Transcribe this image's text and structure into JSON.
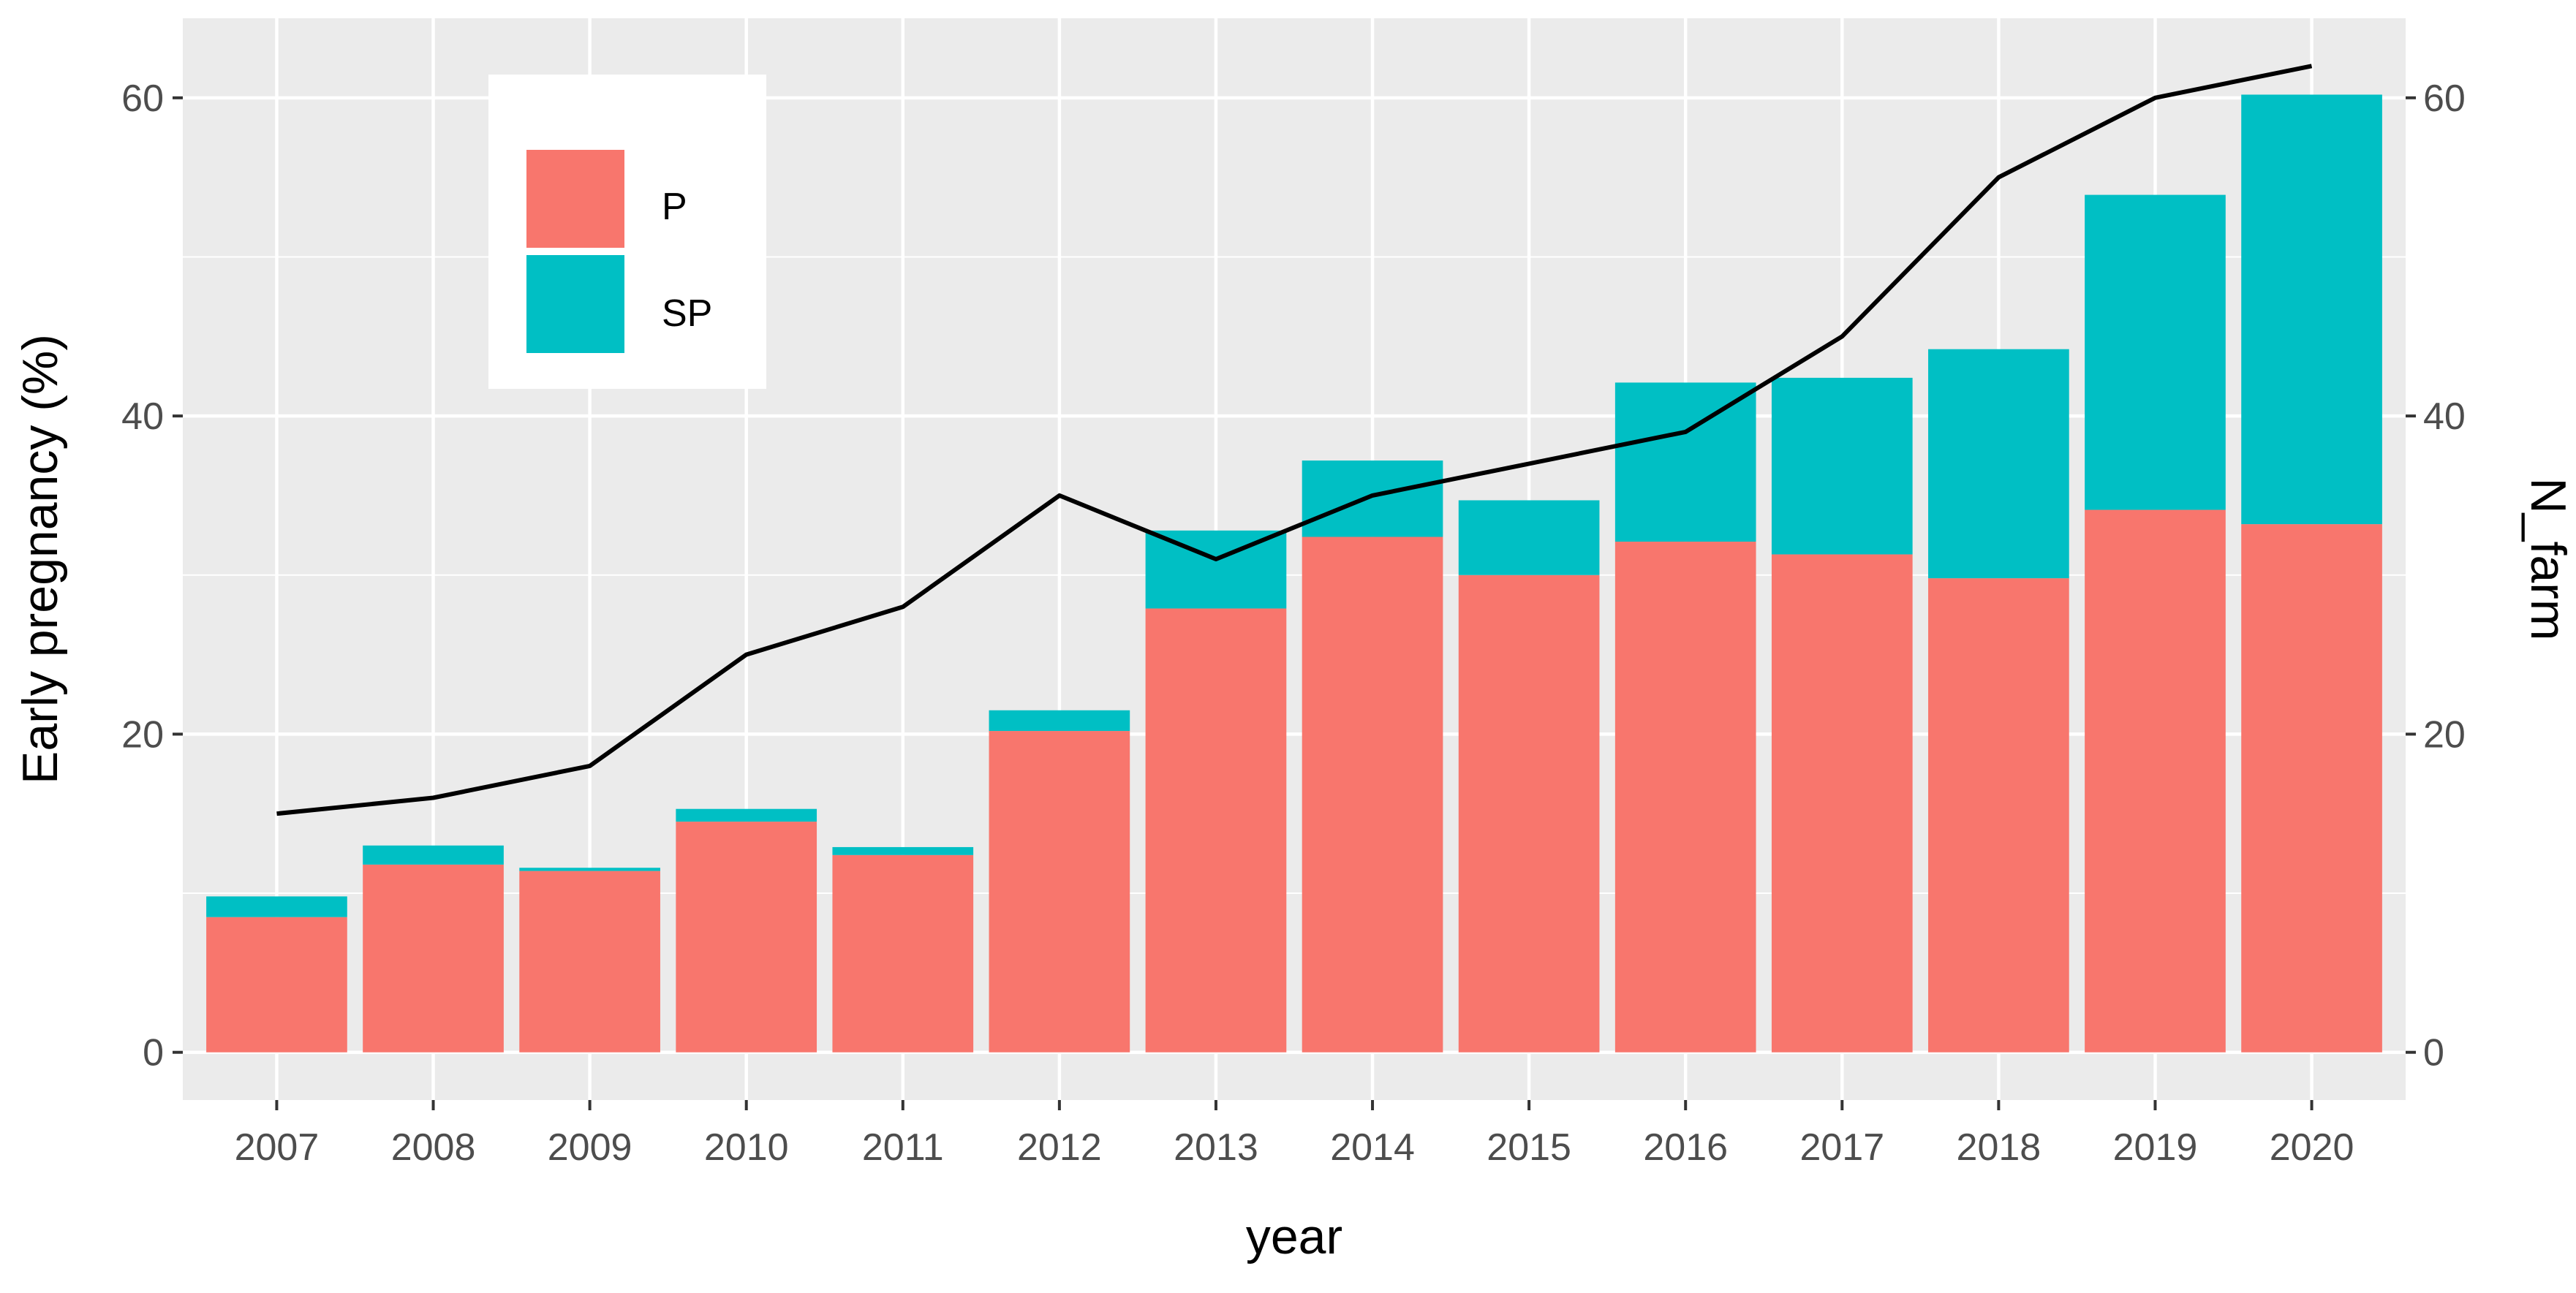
{
  "chart_data": {
    "type": "bar",
    "stacked": true,
    "categories": [
      "2007",
      "2008",
      "2009",
      "2010",
      "2011",
      "2012",
      "2013",
      "2014",
      "2015",
      "2016",
      "2017",
      "2018",
      "2019",
      "2020"
    ],
    "series": [
      {
        "name": "P",
        "color": "#f8766d",
        "values": [
          8.5,
          11.8,
          11.4,
          14.5,
          12.4,
          20.2,
          27.9,
          32.4,
          30.0,
          32.1,
          31.3,
          29.8,
          34.1,
          33.2
        ]
      },
      {
        "name": "SP",
        "color": "#00bfc4",
        "values": [
          1.3,
          1.2,
          0.2,
          0.8,
          0.5,
          1.3,
          4.9,
          4.8,
          4.7,
          10.0,
          11.1,
          14.4,
          19.8,
          27.0
        ]
      }
    ],
    "line": {
      "name": "N_farm",
      "color": "#000000",
      "values": [
        15,
        16,
        18,
        25,
        28,
        35,
        31,
        35,
        37,
        39,
        45,
        55,
        60,
        62
      ]
    },
    "xlabel": "year",
    "ylabel": "Early pregnancy (%)",
    "y2label": "N_farm",
    "ylim": [
      -3,
      65
    ],
    "y2lim": [
      -3,
      65
    ],
    "yticks": [
      "0",
      "20",
      "40",
      "60"
    ],
    "y2ticks": [
      "0",
      "20",
      "40",
      "60"
    ],
    "legend": {
      "position": "top-left",
      "items": [
        "P",
        "SP"
      ]
    },
    "grid": true
  }
}
